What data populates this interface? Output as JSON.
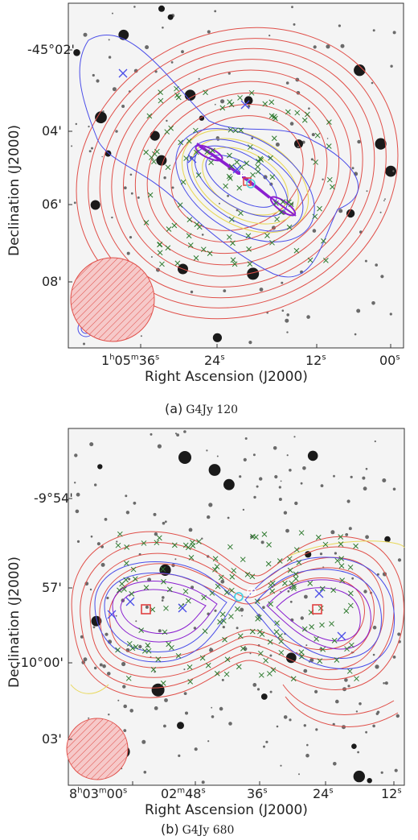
{
  "panels": [
    {
      "id": "a",
      "caption_tag": "(a)",
      "caption_name": "G4Jy 120",
      "ylabel": "Declination (J2000)",
      "xlabel": "Right Ascension (J2000)",
      "yticks": [
        "-45°02'",
        "04'",
        "06'",
        "08'"
      ],
      "xticks": [
        {
          "parts": [
            "1",
            "h",
            "05",
            "m",
            "36",
            "s"
          ]
        },
        {
          "parts": [
            "24",
            "s"
          ]
        },
        {
          "parts": [
            "12",
            "s"
          ]
        },
        {
          "parts": [
            "00",
            "s"
          ]
        }
      ]
    },
    {
      "id": "b",
      "caption_tag": "(b)",
      "caption_name": "G4Jy 680",
      "ylabel": "Declination (J2000)",
      "xlabel": "Right Ascension (J2000)",
      "yticks": [
        "-9°54'",
        "57'",
        "-10°00'",
        "03'"
      ],
      "xticks": [
        {
          "parts": [
            "8",
            "h",
            "03",
            "m",
            "00",
            "s"
          ]
        },
        {
          "parts": [
            "02",
            "m",
            "48",
            "s"
          ]
        },
        {
          "parts": [
            "36",
            "s"
          ]
        },
        {
          "parts": [
            "24",
            "s"
          ]
        },
        {
          "parts": [
            "12",
            "s"
          ]
        }
      ]
    }
  ],
  "colors": {
    "red_contours": "#e0504a",
    "blue_contours": "#4a4de8",
    "yellow_contours": "#e8d85a",
    "violet_contours": "#8a1fd0",
    "green_markers": "#2f7a2f",
    "beam_fill": "#f2b3b3"
  }
}
